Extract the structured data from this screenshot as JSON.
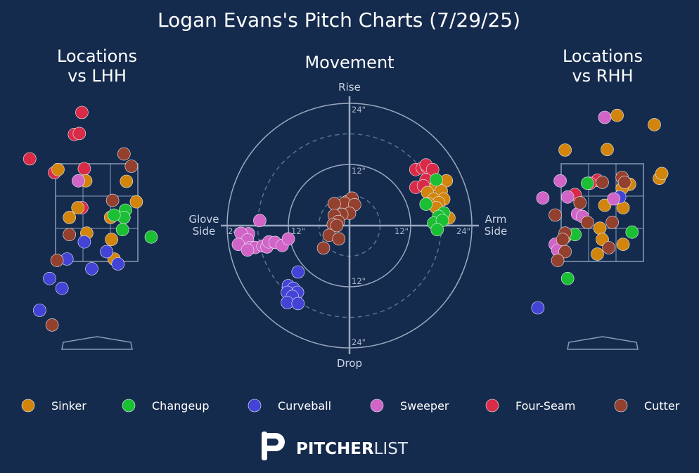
{
  "title": "Logan Evans's Pitch Charts (7/29/25)",
  "colors": {
    "background": "#152b4d",
    "Sinker": "#d1850d",
    "Changeup": "#1bbf33",
    "Curveball": "#4343d6",
    "Sweeper": "#d164c7",
    "Four-Seam": "#d92b47",
    "Cutter": "#94402e"
  },
  "legend": [
    "Sinker",
    "Changeup",
    "Curveball",
    "Sweeper",
    "Four-Seam",
    "Cutter"
  ],
  "brand": {
    "mark": "P",
    "name_bold": "PITCHER",
    "name_light": "LIST"
  },
  "chart_data": [
    {
      "type": "scatter",
      "title": "Locations vs LHH",
      "points": [
        {
          "pitch": "Four-Seam",
          "x": -0.3,
          "y": 4.55
        },
        {
          "pitch": "Four-Seam",
          "x": -1.35,
          "y": 3.6
        },
        {
          "pitch": "Four-Seam",
          "x": -0.45,
          "y": 4.1
        },
        {
          "pitch": "Four-Seam",
          "x": -0.35,
          "y": 4.12
        },
        {
          "pitch": "Four-Seam",
          "x": -0.85,
          "y": 3.32
        },
        {
          "pitch": "Four-Seam",
          "x": -0.25,
          "y": 3.4
        },
        {
          "pitch": "Four-Seam",
          "x": -0.3,
          "y": 2.6
        },
        {
          "pitch": "Sinker",
          "x": -0.78,
          "y": 3.38
        },
        {
          "pitch": "Sinker",
          "x": -0.22,
          "y": 3.15
        },
        {
          "pitch": "Sinker",
          "x": 0.6,
          "y": 3.14
        },
        {
          "pitch": "Sinker",
          "x": 0.8,
          "y": 2.72
        },
        {
          "pitch": "Sinker",
          "x": -0.38,
          "y": 2.6
        },
        {
          "pitch": "Sinker",
          "x": -0.55,
          "y": 2.4
        },
        {
          "pitch": "Sinker",
          "x": -0.2,
          "y": 2.08
        },
        {
          "pitch": "Sinker",
          "x": 0.28,
          "y": 2.4
        },
        {
          "pitch": "Sinker",
          "x": 0.3,
          "y": 1.95
        },
        {
          "pitch": "Sinker",
          "x": 0.35,
          "y": 1.55
        },
        {
          "pitch": "Changeup",
          "x": 0.58,
          "y": 2.55
        },
        {
          "pitch": "Changeup",
          "x": 0.55,
          "y": 2.4
        },
        {
          "pitch": "Changeup",
          "x": 0.52,
          "y": 2.15
        },
        {
          "pitch": "Changeup",
          "x": 1.1,
          "y": 2.0
        },
        {
          "pitch": "Changeup",
          "x": 0.35,
          "y": 2.45
        },
        {
          "pitch": "Curveball",
          "x": -0.25,
          "y": 1.9
        },
        {
          "pitch": "Curveball",
          "x": 0.2,
          "y": 1.7
        },
        {
          "pitch": "Curveball",
          "x": -0.6,
          "y": 1.55
        },
        {
          "pitch": "Curveball",
          "x": 0.43,
          "y": 1.45
        },
        {
          "pitch": "Curveball",
          "x": -0.1,
          "y": 1.35
        },
        {
          "pitch": "Curveball",
          "x": -0.95,
          "y": 1.15
        },
        {
          "pitch": "Curveball",
          "x": -0.7,
          "y": 0.95
        },
        {
          "pitch": "Curveball",
          "x": -1.15,
          "y": 0.5
        },
        {
          "pitch": "Sweeper",
          "x": -0.37,
          "y": 3.15
        },
        {
          "pitch": "Cutter",
          "x": 0.55,
          "y": 3.7
        },
        {
          "pitch": "Cutter",
          "x": 0.7,
          "y": 3.45
        },
        {
          "pitch": "Cutter",
          "x": 0.32,
          "y": 2.75
        },
        {
          "pitch": "Cutter",
          "x": -0.55,
          "y": 2.05
        },
        {
          "pitch": "Cutter",
          "x": -0.8,
          "y": 1.52
        },
        {
          "pitch": "Cutter",
          "x": -0.9,
          "y": 0.2
        }
      ]
    },
    {
      "type": "scatter",
      "title": "Movement",
      "xlabel": "",
      "ylabel": "",
      "axis_labels": {
        "top": "Rise",
        "bottom": "Drop",
        "left": "Glove\nSide",
        "right": "Arm\nSide"
      },
      "rings": [
        6,
        12,
        18,
        24
      ],
      "ring_labels": [
        "12\"",
        "24\""
      ],
      "points": [
        {
          "pitch": "Four-Seam",
          "x": 13.0,
          "y": 11.0
        },
        {
          "pitch": "Four-Seam",
          "x": 14.3,
          "y": 11.3
        },
        {
          "pitch": "Four-Seam",
          "x": 15.2,
          "y": 11.5
        },
        {
          "pitch": "Four-Seam",
          "x": 15.0,
          "y": 11.9
        },
        {
          "pitch": "Four-Seam",
          "x": 16.3,
          "y": 11.0
        },
        {
          "pitch": "Four-Seam",
          "x": 15.0,
          "y": 9.0
        },
        {
          "pitch": "Four-Seam",
          "x": 13.0,
          "y": 7.5
        },
        {
          "pitch": "Four-Seam",
          "x": 14.5,
          "y": 7.8
        },
        {
          "pitch": "Sinker",
          "x": 19.0,
          "y": 8.8
        },
        {
          "pitch": "Sinker",
          "x": 17.0,
          "y": 8.0
        },
        {
          "pitch": "Sinker",
          "x": 18.0,
          "y": 6.8
        },
        {
          "pitch": "Sinker",
          "x": 15.3,
          "y": 6.5
        },
        {
          "pitch": "Sinker",
          "x": 18.5,
          "y": 5.2
        },
        {
          "pitch": "Sinker",
          "x": 16.5,
          "y": 5.2
        },
        {
          "pitch": "Sinker",
          "x": 17.5,
          "y": 4.5
        },
        {
          "pitch": "Sinker",
          "x": 15.5,
          "y": 4.3
        },
        {
          "pitch": "Sinker",
          "x": 17.0,
          "y": 3.5
        },
        {
          "pitch": "Sinker",
          "x": 19.5,
          "y": 1.5
        },
        {
          "pitch": "Changeup",
          "x": 17.0,
          "y": 9.0
        },
        {
          "pitch": "Changeup",
          "x": 15.0,
          "y": 4.2
        },
        {
          "pitch": "Changeup",
          "x": 18.5,
          "y": 2.5
        },
        {
          "pitch": "Changeup",
          "x": 17.5,
          "y": 1.8
        },
        {
          "pitch": "Changeup",
          "x": 16.5,
          "y": 0.5
        },
        {
          "pitch": "Changeup",
          "x": 18.2,
          "y": 1.0
        },
        {
          "pitch": "Changeup",
          "x": 17.2,
          "y": -0.8
        },
        {
          "pitch": "Cutter",
          "x": -0.5,
          "y": 4.7
        },
        {
          "pitch": "Cutter",
          "x": 0.5,
          "y": 5.4
        },
        {
          "pitch": "Cutter",
          "x": -1.0,
          "y": 4.4
        },
        {
          "pitch": "Cutter",
          "x": 1.0,
          "y": 4.1
        },
        {
          "pitch": "Cutter",
          "x": -3.0,
          "y": 4.3
        },
        {
          "pitch": "Cutter",
          "x": 0.0,
          "y": 2.4
        },
        {
          "pitch": "Cutter",
          "x": -1.5,
          "y": 2.2
        },
        {
          "pitch": "Cutter",
          "x": -3.0,
          "y": 2.0
        },
        {
          "pitch": "Cutter",
          "x": -2.2,
          "y": 0.8
        },
        {
          "pitch": "Cutter",
          "x": -3.2,
          "y": 0.2
        },
        {
          "pitch": "Cutter",
          "x": -2.5,
          "y": 0.0
        },
        {
          "pitch": "Cutter",
          "x": -4.0,
          "y": -1.9
        },
        {
          "pitch": "Cutter",
          "x": -2.1,
          "y": -2.6
        },
        {
          "pitch": "Cutter",
          "x": -5.1,
          "y": -4.4
        },
        {
          "pitch": "Sweeper",
          "x": -17.6,
          "y": 1.0
        },
        {
          "pitch": "Sweeper",
          "x": -19.8,
          "y": -1.6
        },
        {
          "pitch": "Sweeper",
          "x": -21.3,
          "y": -1.5
        },
        {
          "pitch": "Sweeper",
          "x": -20.0,
          "y": -2.8
        },
        {
          "pitch": "Sweeper",
          "x": -21.8,
          "y": -3.7
        },
        {
          "pitch": "Sweeper",
          "x": -19.5,
          "y": -4.3
        },
        {
          "pitch": "Sweeper",
          "x": -18.5,
          "y": -4.3
        },
        {
          "pitch": "Sweeper",
          "x": -17.0,
          "y": -4.0
        },
        {
          "pitch": "Sweeper",
          "x": -16.2,
          "y": -4.2
        },
        {
          "pitch": "Sweeper",
          "x": -15.8,
          "y": -3.2
        },
        {
          "pitch": "Sweeper",
          "x": -14.6,
          "y": -3.3
        },
        {
          "pitch": "Sweeper",
          "x": -13.2,
          "y": -3.9
        },
        {
          "pitch": "Sweeper",
          "x": -12.0,
          "y": -2.6
        },
        {
          "pitch": "Sweeper",
          "x": -20.0,
          "y": -4.8
        },
        {
          "pitch": "Curveball",
          "x": -10.1,
          "y": -9.1
        },
        {
          "pitch": "Curveball",
          "x": -12.0,
          "y": -11.8
        },
        {
          "pitch": "Curveball",
          "x": -11.0,
          "y": -12.3
        },
        {
          "pitch": "Curveball",
          "x": -12.2,
          "y": -13.1
        },
        {
          "pitch": "Curveball",
          "x": -10.2,
          "y": -13.1
        },
        {
          "pitch": "Curveball",
          "x": -11.2,
          "y": -13.9
        },
        {
          "pitch": "Curveball",
          "x": -12.2,
          "y": -15.1
        },
        {
          "pitch": "Curveball",
          "x": -10.1,
          "y": -15.3
        }
      ]
    },
    {
      "type": "scatter",
      "title": "Locations vs RHH",
      "points": [
        {
          "pitch": "Sweeper",
          "x": 0.05,
          "y": 4.45
        },
        {
          "pitch": "Sinker",
          "x": 0.3,
          "y": 4.49
        },
        {
          "pitch": "Sinker",
          "x": 1.05,
          "y": 4.3
        },
        {
          "pitch": "Sinker",
          "x": -0.75,
          "y": 3.78
        },
        {
          "pitch": "Sinker",
          "x": 0.1,
          "y": 3.79
        },
        {
          "pitch": "Sinker",
          "x": 1.15,
          "y": 3.2
        },
        {
          "pitch": "Sinker",
          "x": 0.55,
          "y": 3.08
        },
        {
          "pitch": "Sinker",
          "x": 0.4,
          "y": 3.0
        },
        {
          "pitch": "Sinker",
          "x": 0.05,
          "y": 2.65
        },
        {
          "pitch": "Sinker",
          "x": 0.42,
          "y": 2.6
        },
        {
          "pitch": "Sinker",
          "x": -0.05,
          "y": 2.18
        },
        {
          "pitch": "Sinker",
          "x": 0.0,
          "y": 1.95
        },
        {
          "pitch": "Sinker",
          "x": 0.42,
          "y": 1.85
        },
        {
          "pitch": "Sinker",
          "x": -0.1,
          "y": 1.65
        },
        {
          "pitch": "Sinker",
          "x": -0.75,
          "y": 2.0
        },
        {
          "pitch": "Four-Seam",
          "x": -0.1,
          "y": 3.16
        },
        {
          "pitch": "Four-Seam",
          "x": -0.25,
          "y": 3.1
        },
        {
          "pitch": "Four-Seam",
          "x": -0.55,
          "y": 2.87
        },
        {
          "pitch": "Changeup",
          "x": -0.3,
          "y": 3.1
        },
        {
          "pitch": "Changeup",
          "x": 0.6,
          "y": 2.1
        },
        {
          "pitch": "Changeup",
          "x": -0.55,
          "y": 2.05
        },
        {
          "pitch": "Changeup",
          "x": -0.7,
          "y": 1.15
        },
        {
          "pitch": "Curveball",
          "x": 0.35,
          "y": 2.82
        },
        {
          "pitch": "Curveball",
          "x": -1.3,
          "y": 0.55
        },
        {
          "pitch": "Sweeper",
          "x": -0.85,
          "y": 3.15
        },
        {
          "pitch": "Sweeper",
          "x": -1.2,
          "y": 2.8
        },
        {
          "pitch": "Sweeper",
          "x": -0.7,
          "y": 2.82
        },
        {
          "pitch": "Sweeper",
          "x": 0.23,
          "y": 2.78
        },
        {
          "pitch": "Sweeper",
          "x": -0.5,
          "y": 2.47
        },
        {
          "pitch": "Sweeper",
          "x": -0.4,
          "y": 2.42
        },
        {
          "pitch": "Sweeper",
          "x": -0.95,
          "y": 1.85
        },
        {
          "pitch": "Sweeper",
          "x": -0.9,
          "y": 1.73
        },
        {
          "pitch": "Cutter",
          "x": 0.4,
          "y": 3.22
        },
        {
          "pitch": "Cutter",
          "x": 0.45,
          "y": 3.12
        },
        {
          "pitch": "Cutter",
          "x": 0.0,
          "y": 3.12
        },
        {
          "pitch": "Cutter",
          "x": -0.45,
          "y": 2.7
        },
        {
          "pitch": "Cutter",
          "x": -0.95,
          "y": 2.45
        },
        {
          "pitch": "Cutter",
          "x": -0.3,
          "y": 2.3
        },
        {
          "pitch": "Cutter",
          "x": 0.2,
          "y": 2.3
        },
        {
          "pitch": "Cutter",
          "x": -0.75,
          "y": 2.08
        },
        {
          "pitch": "Cutter",
          "x": -0.8,
          "y": 1.95
        },
        {
          "pitch": "Cutter",
          "x": 0.13,
          "y": 1.78
        },
        {
          "pitch": "Cutter",
          "x": -0.75,
          "y": 1.7
        },
        {
          "pitch": "Cutter",
          "x": -0.9,
          "y": 1.52
        },
        {
          "pitch": "Sinker",
          "x": 1.2,
          "y": 3.3
        }
      ]
    }
  ]
}
